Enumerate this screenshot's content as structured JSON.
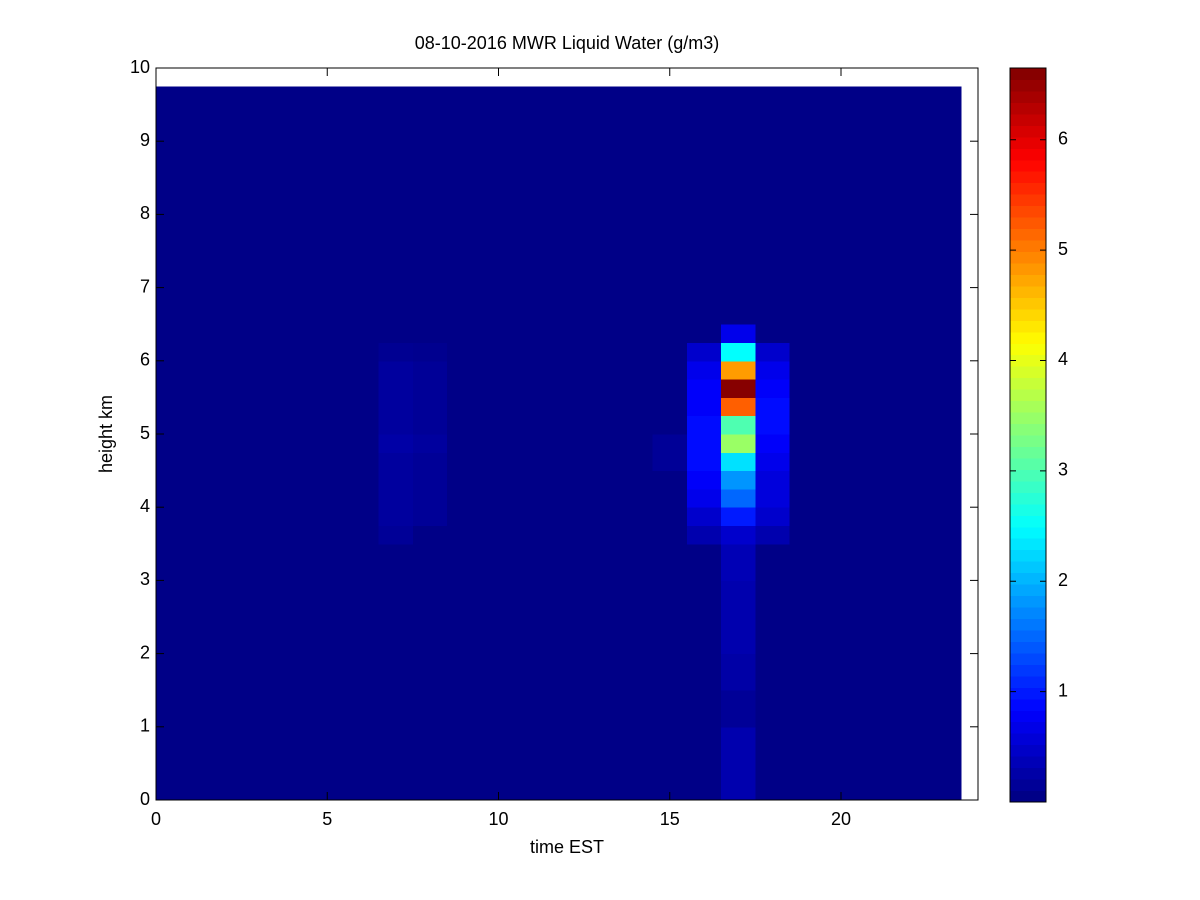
{
  "chart_data": {
    "type": "heatmap",
    "title": "08-10-2016 MWR Liquid Water (g/m3)",
    "x_label": "time EST",
    "y_label": "height km",
    "xlim": [
      0,
      24
    ],
    "ylim": [
      0,
      10
    ],
    "xticks": [
      0,
      5,
      10,
      15,
      20
    ],
    "yticks": [
      0,
      1,
      2,
      3,
      4,
      5,
      6,
      7,
      8,
      9,
      10
    ],
    "colormap": "jet",
    "clim": [
      0,
      6.65
    ],
    "cticks": [
      1,
      2,
      3,
      4,
      5,
      6
    ],
    "x_edges": [
      0,
      6.5,
      7.5,
      8.5,
      14.5,
      15.5,
      16.5,
      17.5,
      18.5,
      23.5
    ],
    "y_edges": [
      0,
      0.5,
      1,
      1.5,
      2,
      2.5,
      3,
      3.5,
      3.75,
      4,
      4.25,
      4.5,
      4.75,
      5,
      5.25,
      5.5,
      5.75,
      6,
      6.25,
      6.5,
      7,
      8,
      9,
      9.75
    ],
    "z": [
      [
        0.05,
        0.05,
        0.05,
        0.05,
        0.05,
        0.05,
        0.3,
        0.05,
        0.05
      ],
      [
        0.05,
        0.05,
        0.05,
        0.05,
        0.05,
        0.05,
        0.3,
        0.05,
        0.05
      ],
      [
        0.05,
        0.05,
        0.05,
        0.05,
        0.05,
        0.05,
        0.15,
        0.05,
        0.05
      ],
      [
        0.05,
        0.05,
        0.05,
        0.05,
        0.05,
        0.05,
        0.25,
        0.05,
        0.05
      ],
      [
        0.05,
        0.05,
        0.05,
        0.05,
        0.05,
        0.05,
        0.3,
        0.05,
        0.05
      ],
      [
        0.05,
        0.05,
        0.05,
        0.05,
        0.05,
        0.05,
        0.3,
        0.05,
        0.05
      ],
      [
        0.05,
        0.05,
        0.05,
        0.05,
        0.05,
        0.05,
        0.35,
        0.05,
        0.05
      ],
      [
        0.05,
        0.15,
        0.05,
        0.05,
        0.05,
        0.3,
        0.5,
        0.3,
        0.05
      ],
      [
        0.05,
        0.2,
        0.15,
        0.05,
        0.05,
        0.5,
        1.0,
        0.5,
        0.05
      ],
      [
        0.05,
        0.2,
        0.15,
        0.05,
        0.05,
        0.7,
        1.5,
        0.6,
        0.05
      ],
      [
        0.05,
        0.2,
        0.15,
        0.05,
        0.05,
        0.8,
        1.8,
        0.6,
        0.05
      ],
      [
        0.05,
        0.2,
        0.15,
        0.05,
        0.15,
        0.9,
        2.3,
        0.7,
        0.05
      ],
      [
        0.05,
        0.25,
        0.2,
        0.05,
        0.15,
        0.9,
        3.5,
        0.8,
        0.05
      ],
      [
        0.05,
        0.2,
        0.15,
        0.05,
        0.05,
        0.9,
        3.0,
        0.9,
        0.05
      ],
      [
        0.05,
        0.2,
        0.15,
        0.05,
        0.05,
        0.8,
        5.2,
        0.9,
        0.05
      ],
      [
        0.05,
        0.2,
        0.15,
        0.05,
        0.05,
        0.8,
        6.6,
        0.8,
        0.05
      ],
      [
        0.05,
        0.2,
        0.15,
        0.05,
        0.05,
        0.7,
        4.8,
        0.7,
        0.05
      ],
      [
        0.05,
        0.12,
        0.1,
        0.05,
        0.05,
        0.5,
        2.5,
        0.5,
        0.05
      ],
      [
        0.05,
        0.05,
        0.05,
        0.05,
        0.05,
        0.05,
        0.7,
        0.05,
        0.05
      ],
      [
        0.05,
        0.05,
        0.05,
        0.05,
        0.05,
        0.05,
        0.05,
        0.05,
        0.05
      ],
      [
        0.05,
        0.05,
        0.05,
        0.05,
        0.05,
        0.05,
        0.05,
        0.05,
        0.05
      ],
      [
        0.05,
        0.05,
        0.05,
        0.05,
        0.05,
        0.05,
        0.05,
        0.05,
        0.05
      ],
      [
        0.05,
        0.05,
        0.05,
        0.05,
        0.05,
        0.05,
        0.05,
        0.05,
        0.05
      ]
    ]
  }
}
